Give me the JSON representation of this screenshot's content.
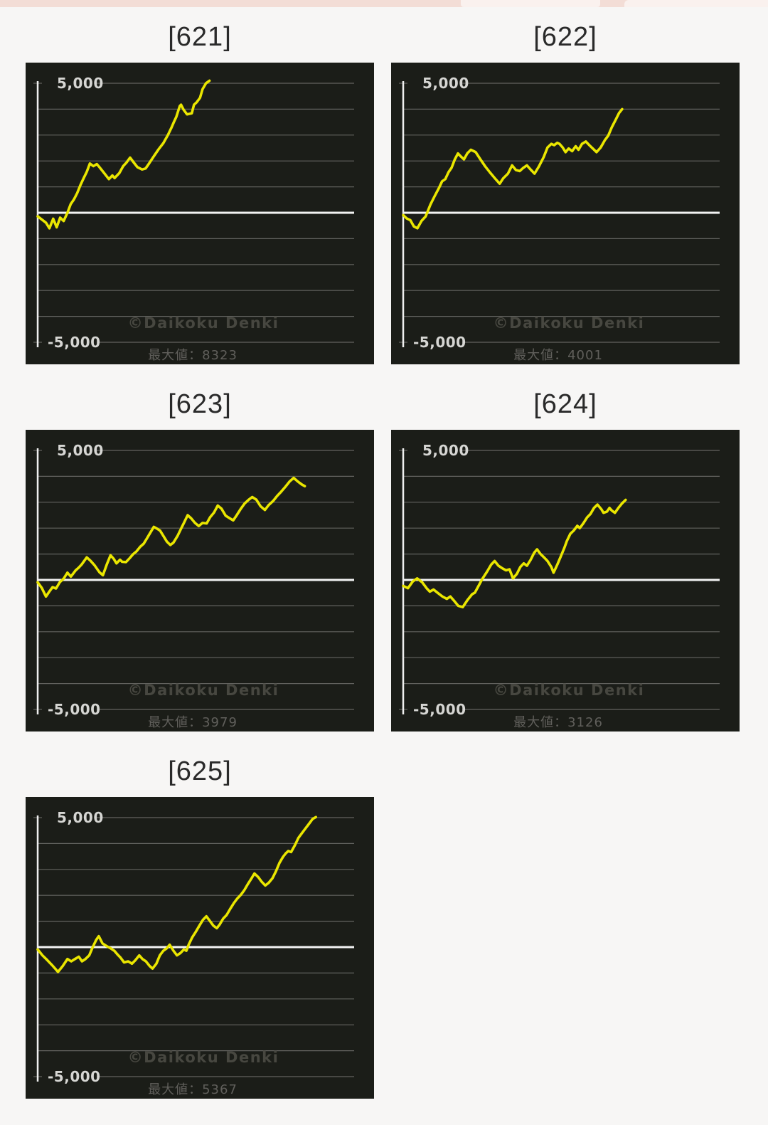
{
  "page": {
    "background": "#f7f6f5",
    "top_bar_color": "#f3ddd6"
  },
  "watermark": "©Daikoku Denki",
  "caption_label": "最大値",
  "axis": {
    "y_max_label": "5,000",
    "y_min_label": "-5,000",
    "y_range": [
      -5000,
      5000
    ],
    "gridline_step": 1000,
    "grid": true
  },
  "colors": {
    "line": "#eae600",
    "panel_bg": "#1b1d18",
    "gridline": "#63635f",
    "zero_line": "#f2f2f2",
    "axis_line": "#efefef",
    "label": "#d6d6d3",
    "watermark": "#474740",
    "caption": "#605f5b",
    "title": "#2a2a2a"
  },
  "chart_data": [
    {
      "type": "line",
      "title": "[621]",
      "caption": "最大値：8323",
      "max_value": 8323,
      "ylim": [
        -5000,
        5000
      ],
      "points": [
        [
          0.0,
          -140
        ],
        [
          0.015,
          -280
        ],
        [
          0.037,
          -600
        ],
        [
          0.049,
          -230
        ],
        [
          0.06,
          -560
        ],
        [
          0.071,
          -190
        ],
        [
          0.082,
          -320
        ],
        [
          0.094,
          0
        ],
        [
          0.135,
          1070
        ],
        [
          0.165,
          1900
        ],
        [
          0.176,
          1800
        ],
        [
          0.187,
          1880
        ],
        [
          0.195,
          1760
        ],
        [
          0.21,
          1530
        ],
        [
          0.225,
          1300
        ],
        [
          0.236,
          1440
        ],
        [
          0.243,
          1340
        ],
        [
          0.258,
          1530
        ],
        [
          0.27,
          1800
        ],
        [
          0.292,
          2130
        ],
        [
          0.303,
          1950
        ],
        [
          0.315,
          1760
        ],
        [
          0.33,
          1670
        ],
        [
          0.341,
          1710
        ],
        [
          0.352,
          1900
        ],
        [
          0.367,
          2180
        ],
        [
          0.382,
          2450
        ],
        [
          0.397,
          2690
        ],
        [
          0.412,
          3010
        ],
        [
          0.423,
          3290
        ],
        [
          0.431,
          3520
        ],
        [
          0.438,
          3700
        ],
        [
          0.449,
          4120
        ],
        [
          0.453,
          4170
        ],
        [
          0.461,
          3980
        ],
        [
          0.472,
          3800
        ],
        [
          0.487,
          3840
        ],
        [
          0.494,
          4170
        ],
        [
          0.502,
          4260
        ],
        [
          0.513,
          4440
        ],
        [
          0.521,
          4770
        ],
        [
          0.532,
          5000
        ],
        [
          0.543,
          5100
        ]
      ]
    },
    {
      "type": "line",
      "title": "[622]",
      "caption": "最大値：4001",
      "max_value": 4001,
      "ylim": [
        -5000,
        5000
      ],
      "points": [
        [
          0.0,
          -90
        ],
        [
          0.045,
          -600
        ],
        [
          0.071,
          -140
        ],
        [
          0.086,
          320
        ],
        [
          0.113,
          960
        ],
        [
          0.143,
          1560
        ],
        [
          0.173,
          2290
        ],
        [
          0.18,
          2200
        ],
        [
          0.192,
          2060
        ],
        [
          0.203,
          2300
        ],
        [
          0.214,
          2430
        ],
        [
          0.229,
          2340
        ],
        [
          0.244,
          2060
        ],
        [
          0.259,
          1790
        ],
        [
          0.274,
          1560
        ],
        [
          0.29,
          1330
        ],
        [
          0.305,
          1120
        ],
        [
          0.316,
          1330
        ],
        [
          0.331,
          1510
        ],
        [
          0.344,
          1830
        ],
        [
          0.356,
          1650
        ],
        [
          0.368,
          1610
        ],
        [
          0.38,
          1740
        ],
        [
          0.391,
          1830
        ],
        [
          0.404,
          1650
        ],
        [
          0.415,
          1510
        ],
        [
          0.429,
          1790
        ],
        [
          0.444,
          2150
        ],
        [
          0.456,
          2520
        ],
        [
          0.468,
          2660
        ],
        [
          0.477,
          2610
        ],
        [
          0.487,
          2700
        ],
        [
          0.494,
          2660
        ],
        [
          0.504,
          2520
        ],
        [
          0.513,
          2340
        ],
        [
          0.523,
          2480
        ],
        [
          0.534,
          2380
        ],
        [
          0.545,
          2570
        ],
        [
          0.554,
          2430
        ],
        [
          0.565,
          2660
        ],
        [
          0.577,
          2750
        ],
        [
          0.588,
          2610
        ],
        [
          0.599,
          2480
        ],
        [
          0.611,
          2340
        ],
        [
          0.624,
          2520
        ],
        [
          0.637,
          2800
        ],
        [
          0.648,
          2980
        ],
        [
          0.659,
          3300
        ],
        [
          0.671,
          3580
        ],
        [
          0.682,
          3850
        ],
        [
          0.692,
          4000
        ]
      ]
    },
    {
      "type": "line",
      "title": "[623]",
      "caption": "最大値：3979",
      "max_value": 3979,
      "ylim": [
        -5000,
        5000
      ],
      "points": [
        [
          0.0,
          -90
        ],
        [
          0.026,
          -640
        ],
        [
          0.047,
          -280
        ],
        [
          0.058,
          -330
        ],
        [
          0.082,
          50
        ],
        [
          0.094,
          280
        ],
        [
          0.105,
          130
        ],
        [
          0.12,
          370
        ],
        [
          0.139,
          600
        ],
        [
          0.155,
          870
        ],
        [
          0.167,
          740
        ],
        [
          0.18,
          560
        ],
        [
          0.195,
          300
        ],
        [
          0.206,
          180
        ],
        [
          0.219,
          620
        ],
        [
          0.23,
          950
        ],
        [
          0.24,
          820
        ],
        [
          0.249,
          640
        ],
        [
          0.26,
          780
        ],
        [
          0.267,
          700
        ],
        [
          0.279,
          690
        ],
        [
          0.29,
          830
        ],
        [
          0.302,
          1000
        ],
        [
          0.312,
          1100
        ],
        [
          0.324,
          1280
        ],
        [
          0.335,
          1400
        ],
        [
          0.345,
          1600
        ],
        [
          0.357,
          1850
        ],
        [
          0.367,
          2050
        ],
        [
          0.377,
          1980
        ],
        [
          0.387,
          1900
        ],
        [
          0.397,
          1700
        ],
        [
          0.408,
          1480
        ],
        [
          0.419,
          1350
        ],
        [
          0.429,
          1440
        ],
        [
          0.442,
          1700
        ],
        [
          0.452,
          1950
        ],
        [
          0.462,
          2200
        ],
        [
          0.474,
          2500
        ],
        [
          0.485,
          2380
        ],
        [
          0.497,
          2200
        ],
        [
          0.509,
          2080
        ],
        [
          0.521,
          2200
        ],
        [
          0.534,
          2180
        ],
        [
          0.545,
          2420
        ],
        [
          0.557,
          2600
        ],
        [
          0.569,
          2870
        ],
        [
          0.581,
          2750
        ],
        [
          0.594,
          2480
        ],
        [
          0.607,
          2380
        ],
        [
          0.618,
          2300
        ],
        [
          0.629,
          2500
        ],
        [
          0.642,
          2750
        ],
        [
          0.654,
          2950
        ],
        [
          0.667,
          3100
        ],
        [
          0.678,
          3200
        ],
        [
          0.691,
          3100
        ],
        [
          0.704,
          2850
        ],
        [
          0.718,
          2700
        ],
        [
          0.73,
          2890
        ],
        [
          0.744,
          3050
        ],
        [
          0.757,
          3250
        ],
        [
          0.769,
          3400
        ],
        [
          0.783,
          3600
        ],
        [
          0.796,
          3800
        ],
        [
          0.809,
          3940
        ],
        [
          0.822,
          3800
        ],
        [
          0.835,
          3680
        ],
        [
          0.844,
          3620
        ]
      ]
    },
    {
      "type": "line",
      "title": "[624]",
      "caption": "最大値：3126",
      "max_value": 3126,
      "ylim": [
        -5000,
        5000
      ],
      "points": [
        [
          0.0,
          -230
        ],
        [
          0.015,
          -320
        ],
        [
          0.03,
          -60
        ],
        [
          0.044,
          60
        ],
        [
          0.06,
          -90
        ],
        [
          0.074,
          -320
        ],
        [
          0.084,
          -450
        ],
        [
          0.096,
          -370
        ],
        [
          0.109,
          -500
        ],
        [
          0.124,
          -640
        ],
        [
          0.138,
          -730
        ],
        [
          0.149,
          -640
        ],
        [
          0.159,
          -780
        ],
        [
          0.174,
          -1000
        ],
        [
          0.188,
          -1050
        ],
        [
          0.203,
          -780
        ],
        [
          0.218,
          -550
        ],
        [
          0.235,
          -300
        ],
        [
          0.25,
          40
        ],
        [
          0.265,
          320
        ],
        [
          0.278,
          590
        ],
        [
          0.289,
          730
        ],
        [
          0.301,
          550
        ],
        [
          0.312,
          460
        ],
        [
          0.325,
          370
        ],
        [
          0.336,
          410
        ],
        [
          0.347,
          60
        ],
        [
          0.359,
          230
        ],
        [
          0.37,
          500
        ],
        [
          0.381,
          640
        ],
        [
          0.391,
          550
        ],
        [
          0.403,
          780
        ],
        [
          0.414,
          1050
        ],
        [
          0.423,
          1180
        ],
        [
          0.434,
          1000
        ],
        [
          0.445,
          870
        ],
        [
          0.456,
          730
        ],
        [
          0.468,
          500
        ],
        [
          0.475,
          280
        ],
        [
          0.487,
          590
        ],
        [
          0.498,
          910
        ],
        [
          0.509,
          1230
        ],
        [
          0.517,
          1500
        ],
        [
          0.528,
          1780
        ],
        [
          0.539,
          1910
        ],
        [
          0.55,
          2090
        ],
        [
          0.558,
          2000
        ],
        [
          0.569,
          2180
        ],
        [
          0.581,
          2410
        ],
        [
          0.592,
          2550
        ],
        [
          0.603,
          2780
        ],
        [
          0.614,
          2910
        ],
        [
          0.626,
          2730
        ],
        [
          0.633,
          2590
        ],
        [
          0.644,
          2640
        ],
        [
          0.652,
          2780
        ],
        [
          0.659,
          2680
        ],
        [
          0.669,
          2590
        ],
        [
          0.68,
          2780
        ],
        [
          0.692,
          2960
        ],
        [
          0.703,
          3090
        ]
      ]
    },
    {
      "type": "line",
      "title": "[625]",
      "caption": "最大値：5367",
      "max_value": 5367,
      "ylim": [
        -5000,
        5000
      ],
      "points": [
        [
          0.0,
          -90
        ],
        [
          0.015,
          -320
        ],
        [
          0.03,
          -500
        ],
        [
          0.045,
          -690
        ],
        [
          0.064,
          -960
        ],
        [
          0.079,
          -730
        ],
        [
          0.094,
          -460
        ],
        [
          0.106,
          -550
        ],
        [
          0.118,
          -460
        ],
        [
          0.13,
          -370
        ],
        [
          0.14,
          -550
        ],
        [
          0.151,
          -460
        ],
        [
          0.163,
          -320
        ],
        [
          0.174,
          0
        ],
        [
          0.185,
          280
        ],
        [
          0.193,
          420
        ],
        [
          0.205,
          140
        ],
        [
          0.217,
          45
        ],
        [
          0.23,
          -45
        ],
        [
          0.242,
          -140
        ],
        [
          0.252,
          -280
        ],
        [
          0.262,
          -410
        ],
        [
          0.273,
          -590
        ],
        [
          0.286,
          -550
        ],
        [
          0.298,
          -640
        ],
        [
          0.309,
          -500
        ],
        [
          0.321,
          -320
        ],
        [
          0.331,
          -460
        ],
        [
          0.342,
          -550
        ],
        [
          0.354,
          -730
        ],
        [
          0.363,
          -830
        ],
        [
          0.375,
          -640
        ],
        [
          0.386,
          -320
        ],
        [
          0.397,
          -140
        ],
        [
          0.408,
          -45
        ],
        [
          0.417,
          90
        ],
        [
          0.429,
          -140
        ],
        [
          0.44,
          -320
        ],
        [
          0.451,
          -230
        ],
        [
          0.462,
          -90
        ],
        [
          0.47,
          -140
        ],
        [
          0.477,
          90
        ],
        [
          0.488,
          370
        ],
        [
          0.5,
          600
        ],
        [
          0.511,
          830
        ],
        [
          0.522,
          1050
        ],
        [
          0.533,
          1190
        ],
        [
          0.544,
          1010
        ],
        [
          0.555,
          830
        ],
        [
          0.566,
          730
        ],
        [
          0.575,
          870
        ],
        [
          0.586,
          1100
        ],
        [
          0.597,
          1240
        ],
        [
          0.608,
          1470
        ],
        [
          0.62,
          1700
        ],
        [
          0.631,
          1880
        ],
        [
          0.642,
          2020
        ],
        [
          0.653,
          2200
        ],
        [
          0.664,
          2430
        ],
        [
          0.676,
          2660
        ],
        [
          0.685,
          2840
        ],
        [
          0.697,
          2700
        ],
        [
          0.708,
          2520
        ],
        [
          0.719,
          2380
        ],
        [
          0.73,
          2480
        ],
        [
          0.742,
          2660
        ],
        [
          0.753,
          2930
        ],
        [
          0.764,
          3250
        ],
        [
          0.775,
          3480
        ],
        [
          0.784,
          3620
        ],
        [
          0.792,
          3710
        ],
        [
          0.801,
          3670
        ],
        [
          0.813,
          3940
        ],
        [
          0.824,
          4220
        ],
        [
          0.835,
          4400
        ],
        [
          0.846,
          4580
        ],
        [
          0.858,
          4770
        ],
        [
          0.869,
          4950
        ],
        [
          0.879,
          5020
        ]
      ]
    }
  ]
}
